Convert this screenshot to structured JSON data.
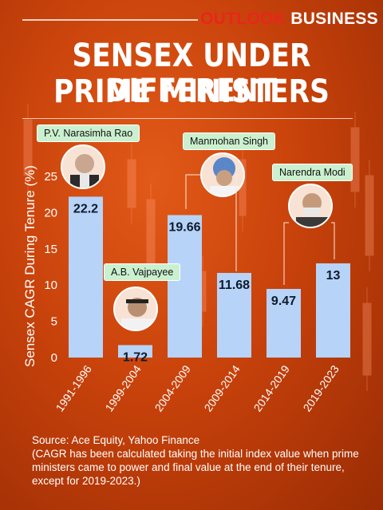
{
  "brand": {
    "outlook": "OUTLOOK",
    "business": "BUSINESS"
  },
  "title": {
    "line1": "SENSEX UNDER DIFFERENT",
    "line2": "PRIME MINISTERS"
  },
  "chart_data": {
    "type": "bar",
    "ylabel": "Sensex CAGR During Tenure (%)",
    "xlabel": "",
    "ylim": [
      0,
      25
    ],
    "yticks": [
      0,
      5,
      10,
      15,
      20,
      25
    ],
    "categories": [
      "1991-1996",
      "1999-2004",
      "2004-2009",
      "2009-2014",
      "2014-2019",
      "2019-2023"
    ],
    "values": [
      22.2,
      1.72,
      19.66,
      11.68,
      9.47,
      13
    ],
    "value_labels": [
      "22.2",
      "1.72",
      "19.66",
      "11.68",
      "9.47",
      "13"
    ],
    "bar_color": "#b7d3f8",
    "grid": false
  },
  "prime_ministers": [
    "P.V. Narasimha Rao",
    "A.B. Vajpayee",
    "Manmohan Singh",
    "Narendra Modi"
  ],
  "footer": {
    "source": "Source: Ace Equity, Yahoo Finance",
    "note": "(CAGR has been calculated taking the initial index value when prime ministers came to power and final value at the end of their tenure, except for 2019-2023.)"
  },
  "colors": {
    "background": "#c8420b",
    "bar": "#b7d3f8",
    "label_bg": "#cbf0cf",
    "brand_red": "#e8261c"
  }
}
